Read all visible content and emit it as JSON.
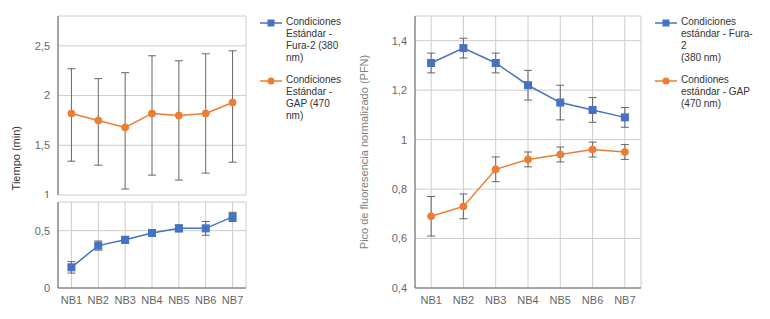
{
  "chart_data": [
    {
      "type": "line",
      "ylabel": "Tiempo (min)",
      "categories": [
        "NB1",
        "NB2",
        "NB3",
        "NB4",
        "NB5",
        "NB6",
        "NB7"
      ],
      "series": [
        {
          "name": "Condiciones\nEstándar -\nFura-2 (380\nnm)",
          "color": "#4472C4",
          "marker": "square",
          "values": [
            0.18,
            0.37,
            0.42,
            0.48,
            0.52,
            0.52,
            0.62
          ],
          "error_up": [
            0.05,
            0.04,
            0.03,
            0.03,
            0.03,
            0.06,
            0.04
          ],
          "error_down": [
            0.05,
            0.04,
            0.03,
            0.03,
            0.03,
            0.06,
            0.04
          ]
        }
      ],
      "ylim": [
        0.0,
        0.75
      ],
      "yticks": [
        0,
        {
          "value": 0.5,
          "label": "0,5"
        }
      ],
      "grid": true,
      "legend": "right"
    },
    {
      "type": "line",
      "categories": [
        "NB1",
        "NB2",
        "NB3",
        "NB4",
        "NB5",
        "NB6",
        "NB7"
      ],
      "series": [
        {
          "name": "Condiciones\nEstándar -\nGAP (470\nnm)",
          "color": "#ED7D31",
          "marker": "circle",
          "values": [
            1.82,
            1.75,
            1.68,
            1.82,
            1.8,
            1.82,
            1.93
          ],
          "error_up": [
            0.45,
            0.42,
            0.55,
            0.58,
            0.55,
            0.6,
            0.52
          ],
          "error_down": [
            0.48,
            0.45,
            0.62,
            0.62,
            0.65,
            0.6,
            0.6
          ]
        }
      ],
      "ylim": [
        1.0,
        2.8
      ],
      "yticks": [
        1,
        {
          "value": 1.5,
          "label": "1,5"
        },
        2,
        {
          "value": 2.5,
          "label": "2,5"
        }
      ],
      "grid": true,
      "legend": "right",
      "tick_labels": "y"
    },
    {
      "type": "line",
      "ylabel": "Pico de fluoresencia normalizado (PFN)",
      "categories": [
        "NB1",
        "NB2",
        "NB3",
        "NB4",
        "NB5",
        "NB6",
        "NB7"
      ],
      "series": [
        {
          "name": "Condiciones\nestándar - Fura-2\n(380 nm)",
          "color": "#4472C4",
          "marker": "square",
          "values": [
            1.31,
            1.37,
            1.31,
            1.22,
            1.15,
            1.12,
            1.09
          ],
          "error_up": [
            0.04,
            0.04,
            0.04,
            0.06,
            0.07,
            0.05,
            0.04
          ],
          "error_down": [
            0.04,
            0.04,
            0.04,
            0.06,
            0.07,
            0.05,
            0.04
          ]
        },
        {
          "name": "Condiones\nestándar - GAP\n(470 nm)",
          "color": "#ED7D31",
          "marker": "circle",
          "values": [
            0.69,
            0.73,
            0.88,
            0.92,
            0.94,
            0.96,
            0.95
          ],
          "error_up": [
            0.08,
            0.05,
            0.05,
            0.03,
            0.03,
            0.03,
            0.03
          ],
          "error_down": [
            0.08,
            0.05,
            0.05,
            0.03,
            0.03,
            0.03,
            0.03
          ]
        }
      ],
      "ylim": [
        0.4,
        1.5
      ],
      "yticks": [
        {
          "value": 0.4,
          "label": "0,4"
        },
        {
          "value": 0.6,
          "label": "0,6"
        },
        {
          "value": 0.8,
          "label": "0,8"
        },
        1,
        {
          "value": 1.2,
          "label": "1,2"
        },
        {
          "value": 1.4,
          "label": "1,4"
        }
      ],
      "grid": true,
      "legend": "right"
    }
  ]
}
